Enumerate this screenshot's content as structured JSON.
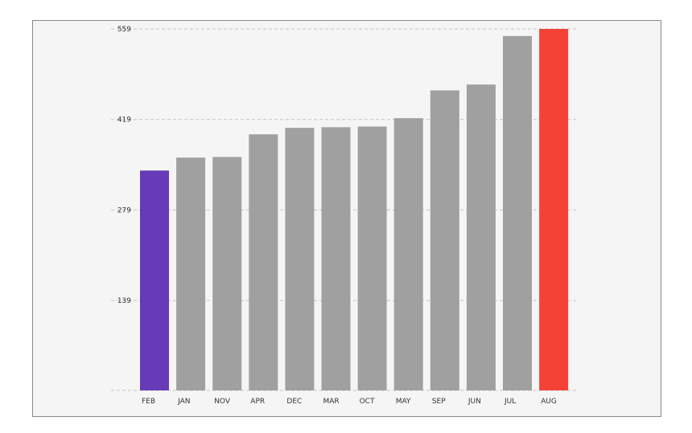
{
  "chart_data": {
    "type": "bar",
    "categories": [
      "FEB",
      "JAN",
      "NOV",
      "APR",
      "DEC",
      "MAR",
      "OCT",
      "MAY",
      "SEP",
      "JUN",
      "JUL",
      "AUG"
    ],
    "values": [
      340,
      360,
      361,
      396,
      406,
      407,
      408,
      421,
      464,
      473,
      548,
      559
    ],
    "y_ticks": [
      "559",
      "419",
      "279",
      "139"
    ],
    "y_tick_values": [
      559,
      419,
      279,
      139
    ],
    "ylim": [
      0,
      559
    ],
    "title": "",
    "xlabel": "",
    "ylabel": "",
    "grid": true,
    "legend": "none",
    "colors": {
      "default": "#a0a0a0",
      "min": "#673ab7",
      "max": "#f44336",
      "background": "#f5f5f5",
      "border": "#8a8a8a",
      "grid": "#c4c4c4",
      "text": "#333333"
    }
  }
}
